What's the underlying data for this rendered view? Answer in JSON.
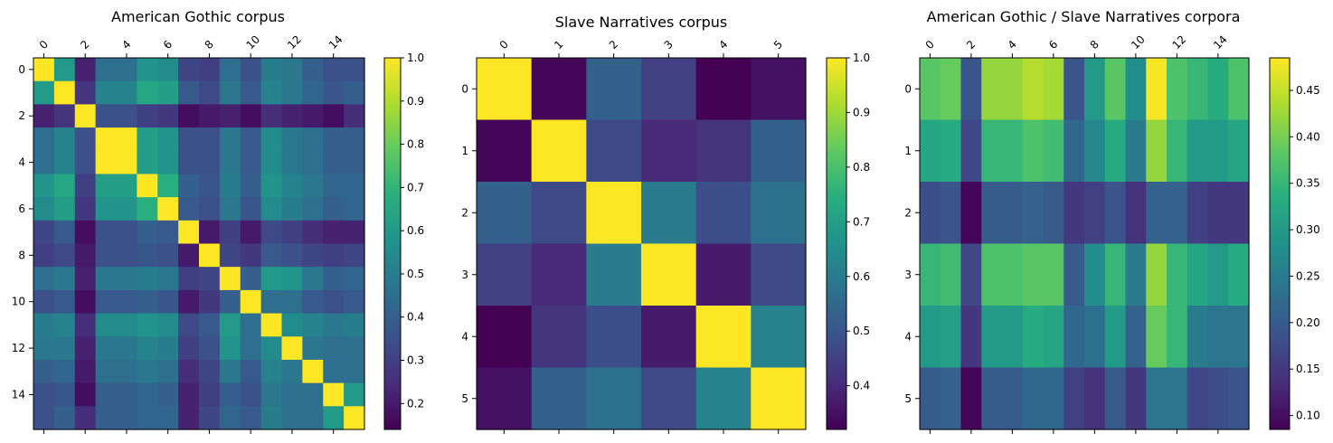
{
  "figure": {
    "background": "#ffffff",
    "colormap": "viridis",
    "colormap_stops": [
      "#440154",
      "#472d7b",
      "#3b528b",
      "#2c728e",
      "#21918c",
      "#28ae80",
      "#5ec962",
      "#addc30",
      "#fde725"
    ]
  },
  "chart_data": [
    {
      "type": "heatmap",
      "title": "American Gothic corpus",
      "xlabel": "",
      "ylabel": "",
      "x_ticks": [
        "0",
        "2",
        "4",
        "6",
        "8",
        "10",
        "12",
        "14"
      ],
      "y_ticks": [
        "0",
        "2",
        "4",
        "6",
        "8",
        "10",
        "12",
        "14"
      ],
      "tick_positions": [
        0,
        2,
        4,
        6,
        8,
        10,
        12,
        14
      ],
      "x_tick_position": "top",
      "rows": 16,
      "cols": 16,
      "colorbar": {
        "ticks": [
          "0.2",
          "0.3",
          "0.4",
          "0.5",
          "0.6",
          "0.7",
          "0.8",
          "0.9",
          "1.0"
        ],
        "tick_values": [
          0.2,
          0.3,
          0.4,
          0.5,
          0.6,
          0.7,
          0.8,
          0.9,
          1.0
        ],
        "vmin": 0.14,
        "vmax": 1.0
      },
      "values": [
        [
          1.0,
          0.6,
          0.22,
          0.45,
          0.45,
          0.58,
          0.55,
          0.32,
          0.3,
          0.45,
          0.35,
          0.5,
          0.48,
          0.4,
          0.35,
          0.35
        ],
        [
          0.6,
          1.0,
          0.27,
          0.52,
          0.52,
          0.65,
          0.62,
          0.38,
          0.33,
          0.48,
          0.38,
          0.52,
          0.48,
          0.42,
          0.37,
          0.4
        ],
        [
          0.22,
          0.27,
          1.0,
          0.35,
          0.35,
          0.3,
          0.28,
          0.17,
          0.2,
          0.22,
          0.17,
          0.25,
          0.22,
          0.2,
          0.17,
          0.25
        ],
        [
          0.45,
          0.52,
          0.35,
          1.0,
          1.0,
          0.62,
          0.58,
          0.35,
          0.35,
          0.48,
          0.38,
          0.55,
          0.48,
          0.45,
          0.4,
          0.4
        ],
        [
          0.45,
          0.52,
          0.35,
          1.0,
          1.0,
          0.62,
          0.58,
          0.35,
          0.35,
          0.48,
          0.38,
          0.55,
          0.48,
          0.45,
          0.4,
          0.4
        ],
        [
          0.58,
          0.65,
          0.3,
          0.62,
          0.62,
          1.0,
          0.68,
          0.4,
          0.37,
          0.5,
          0.4,
          0.58,
          0.52,
          0.48,
          0.42,
          0.42
        ],
        [
          0.55,
          0.62,
          0.28,
          0.58,
          0.58,
          0.68,
          1.0,
          0.38,
          0.35,
          0.48,
          0.37,
          0.55,
          0.5,
          0.45,
          0.4,
          0.42
        ],
        [
          0.32,
          0.38,
          0.17,
          0.35,
          0.35,
          0.4,
          0.38,
          1.0,
          0.2,
          0.3,
          0.2,
          0.33,
          0.3,
          0.25,
          0.22,
          0.22
        ],
        [
          0.3,
          0.33,
          0.2,
          0.35,
          0.35,
          0.37,
          0.35,
          0.2,
          1.0,
          0.32,
          0.28,
          0.38,
          0.35,
          0.32,
          0.3,
          0.32
        ],
        [
          0.45,
          0.48,
          0.22,
          0.48,
          0.48,
          0.5,
          0.48,
          0.3,
          0.32,
          1.0,
          0.4,
          0.6,
          0.58,
          0.48,
          0.4,
          0.42
        ],
        [
          0.35,
          0.38,
          0.17,
          0.38,
          0.38,
          0.4,
          0.37,
          0.2,
          0.28,
          0.4,
          1.0,
          0.45,
          0.45,
          0.38,
          0.35,
          0.38
        ],
        [
          0.5,
          0.52,
          0.25,
          0.55,
          0.55,
          0.58,
          0.55,
          0.33,
          0.38,
          0.6,
          0.45,
          1.0,
          0.55,
          0.52,
          0.48,
          0.5
        ],
        [
          0.48,
          0.48,
          0.22,
          0.48,
          0.48,
          0.52,
          0.5,
          0.3,
          0.35,
          0.58,
          0.45,
          0.55,
          1.0,
          0.48,
          0.45,
          0.45
        ],
        [
          0.4,
          0.42,
          0.2,
          0.45,
          0.45,
          0.48,
          0.45,
          0.25,
          0.32,
          0.48,
          0.38,
          0.52,
          0.48,
          1.0,
          0.45,
          0.45
        ],
        [
          0.35,
          0.37,
          0.17,
          0.4,
          0.4,
          0.42,
          0.4,
          0.22,
          0.3,
          0.4,
          0.35,
          0.48,
          0.45,
          0.45,
          1.0,
          0.6
        ],
        [
          0.35,
          0.4,
          0.25,
          0.4,
          0.4,
          0.42,
          0.42,
          0.22,
          0.32,
          0.42,
          0.38,
          0.5,
          0.45,
          0.45,
          0.6,
          1.0
        ]
      ]
    },
    {
      "type": "heatmap",
      "title": "Slave Narratives corpus",
      "xlabel": "",
      "ylabel": "",
      "x_ticks": [
        "0",
        "1",
        "2",
        "3",
        "4",
        "5"
      ],
      "y_ticks": [
        "0",
        "1",
        "2",
        "3",
        "4",
        "5"
      ],
      "tick_positions": [
        0,
        1,
        2,
        3,
        4,
        5
      ],
      "x_tick_position": "top",
      "rows": 6,
      "cols": 6,
      "colorbar": {
        "ticks": [
          "0.4",
          "0.5",
          "0.6",
          "0.7",
          "0.8",
          "0.9",
          "1.0"
        ],
        "tick_values": [
          0.4,
          0.5,
          0.6,
          0.7,
          0.8,
          0.9,
          1.0
        ],
        "vmin": 0.32,
        "vmax": 1.0
      },
      "values": [
        [
          1.0,
          0.33,
          0.53,
          0.45,
          0.32,
          0.35
        ],
        [
          0.33,
          1.0,
          0.47,
          0.4,
          0.42,
          0.53
        ],
        [
          0.53,
          0.47,
          1.0,
          0.6,
          0.48,
          0.57
        ],
        [
          0.45,
          0.4,
          0.6,
          1.0,
          0.37,
          0.47
        ],
        [
          0.32,
          0.42,
          0.48,
          0.37,
          1.0,
          0.62
        ],
        [
          0.35,
          0.53,
          0.57,
          0.47,
          0.62,
          1.0
        ]
      ]
    },
    {
      "type": "heatmap",
      "title": "American Gothic / Slave Narratives corpora",
      "xlabel": "",
      "ylabel": "",
      "x_ticks": [
        "0",
        "2",
        "4",
        "6",
        "8",
        "10",
        "12",
        "14"
      ],
      "y_ticks": [
        "0",
        "1",
        "2",
        "3",
        "4",
        "5"
      ],
      "x_tick_positions": [
        0,
        2,
        4,
        6,
        8,
        10,
        12,
        14
      ],
      "y_tick_positions": [
        0,
        1,
        2,
        3,
        4,
        5
      ],
      "x_tick_position": "top",
      "rows": 6,
      "cols": 16,
      "colorbar": {
        "ticks": [
          "0.10",
          "0.15",
          "0.20",
          "0.25",
          "0.30",
          "0.35",
          "0.40",
          "0.45"
        ],
        "tick_values": [
          0.1,
          0.15,
          0.2,
          0.25,
          0.3,
          0.35,
          0.4,
          0.45
        ],
        "vmin": 0.085,
        "vmax": 0.485
      },
      "values": [
        [
          0.38,
          0.39,
          0.19,
          0.42,
          0.42,
          0.44,
          0.43,
          0.19,
          0.3,
          0.38,
          0.28,
          0.48,
          0.37,
          0.35,
          0.33,
          0.37
        ],
        [
          0.32,
          0.33,
          0.17,
          0.35,
          0.35,
          0.37,
          0.36,
          0.22,
          0.27,
          0.33,
          0.25,
          0.42,
          0.35,
          0.3,
          0.3,
          0.32
        ],
        [
          0.18,
          0.19,
          0.09,
          0.2,
          0.2,
          0.21,
          0.2,
          0.15,
          0.16,
          0.19,
          0.14,
          0.21,
          0.21,
          0.16,
          0.15,
          0.15
        ],
        [
          0.35,
          0.36,
          0.17,
          0.37,
          0.37,
          0.38,
          0.38,
          0.2,
          0.28,
          0.35,
          0.25,
          0.42,
          0.35,
          0.32,
          0.3,
          0.33
        ],
        [
          0.3,
          0.31,
          0.15,
          0.3,
          0.3,
          0.33,
          0.32,
          0.22,
          0.23,
          0.3,
          0.21,
          0.39,
          0.35,
          0.25,
          0.24,
          0.24
        ],
        [
          0.2,
          0.21,
          0.09,
          0.2,
          0.2,
          0.22,
          0.22,
          0.16,
          0.14,
          0.2,
          0.15,
          0.24,
          0.24,
          0.17,
          0.18,
          0.19
        ]
      ]
    }
  ]
}
